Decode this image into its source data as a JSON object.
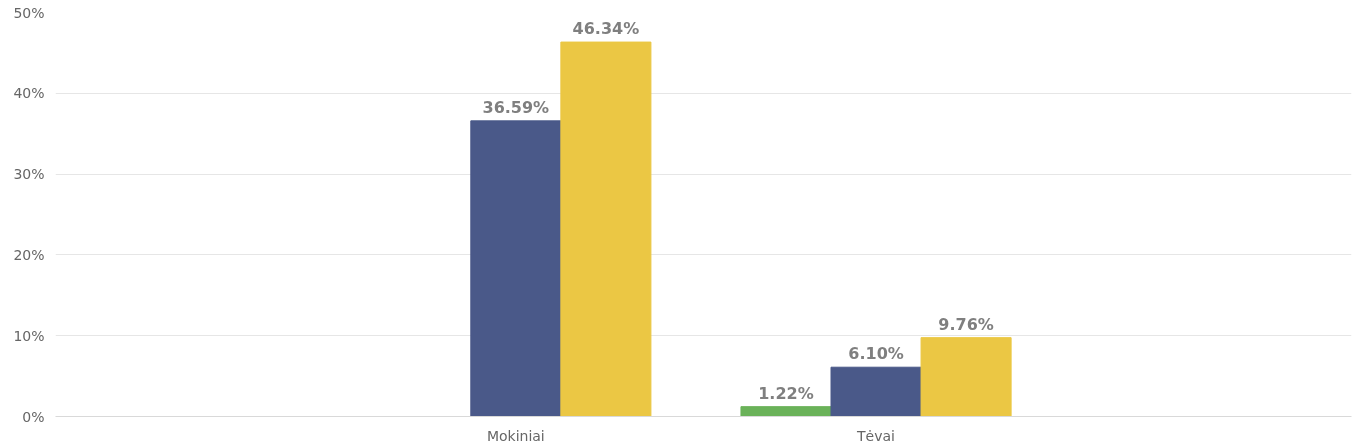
{
  "chart_data": {
    "type": "bar",
    "categories": [
      "Mokiniai",
      "Tėvai"
    ],
    "series": [
      {
        "color": "#6ab259",
        "values": [
          null,
          1.22
        ],
        "value_labels": [
          null,
          "1.22%"
        ]
      },
      {
        "color": "#4a5989",
        "values": [
          36.59,
          6.1
        ],
        "value_labels": [
          "36.59%",
          "6.10%"
        ]
      },
      {
        "color": "#ebc744",
        "values": [
          46.34,
          9.76
        ],
        "value_labels": [
          "46.34%",
          "9.76%"
        ]
      }
    ],
    "ylim": [
      0,
      50
    ],
    "yticks": [
      {
        "value": 0,
        "label": "0%"
      },
      {
        "value": 10,
        "label": "10%"
      },
      {
        "value": 20,
        "label": "20%"
      },
      {
        "value": 30,
        "label": "30%"
      },
      {
        "value": 40,
        "label": "40%"
      },
      {
        "value": 50,
        "label": "50%"
      }
    ],
    "grid": "y"
  }
}
